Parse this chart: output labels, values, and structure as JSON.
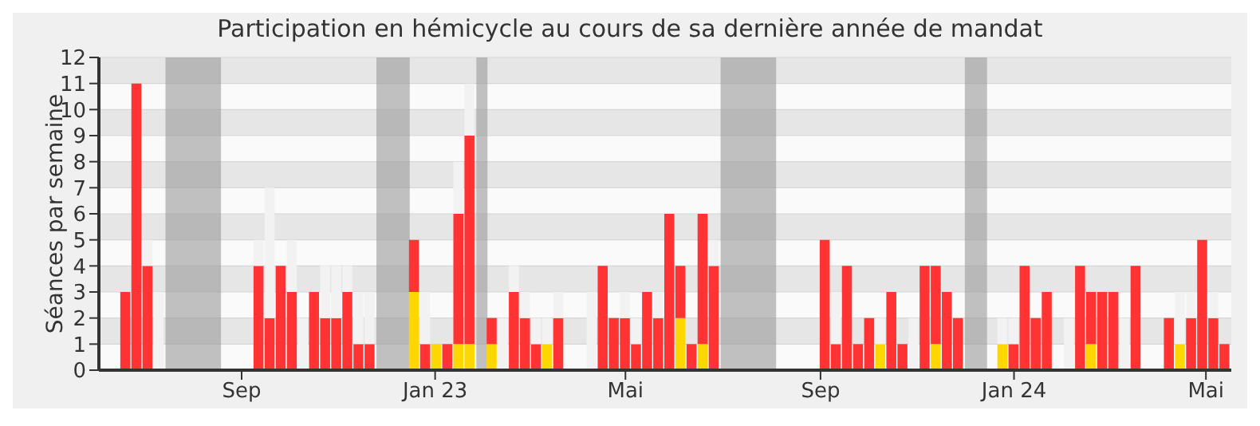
{
  "chart_data": {
    "type": "bar",
    "title": "Participation en hémicycle au cours de sa dernière année de mandat",
    "ylabel": "Séances par semaine",
    "stacked": true,
    "x": [
      "2022-06-20",
      "2022-06-27",
      "2022-07-04",
      "2022-07-11",
      "2022-07-18",
      "2022-07-25",
      "2022-08-01",
      "2022-08-08",
      "2022-08-15",
      "2022-08-22",
      "2022-08-29",
      "2022-09-05",
      "2022-09-12",
      "2022-09-19",
      "2022-09-26",
      "2022-10-03",
      "2022-10-10",
      "2022-10-17",
      "2022-10-24",
      "2022-10-31",
      "2022-11-07",
      "2022-11-14",
      "2022-11-21",
      "2022-11-28",
      "2022-12-05",
      "2022-12-12",
      "2022-12-19",
      "2022-12-26",
      "2023-01-02",
      "2023-01-09",
      "2023-01-16",
      "2023-01-23",
      "2023-01-30",
      "2023-02-06",
      "2023-02-13",
      "2023-02-20",
      "2023-02-27",
      "2023-03-06",
      "2023-03-13",
      "2023-03-20",
      "2023-03-27",
      "2023-04-03",
      "2023-04-10",
      "2023-04-17",
      "2023-04-24",
      "2023-05-01",
      "2023-05-08",
      "2023-05-15",
      "2023-05-22",
      "2023-05-29",
      "2023-06-05",
      "2023-06-12",
      "2023-06-19",
      "2023-06-26",
      "2023-07-03",
      "2023-07-10",
      "2023-07-17",
      "2023-07-24",
      "2023-07-31",
      "2023-08-07",
      "2023-08-14",
      "2023-08-21",
      "2023-08-28",
      "2023-09-04",
      "2023-09-11",
      "2023-09-18",
      "2023-09-25",
      "2023-10-02",
      "2023-10-09",
      "2023-10-16",
      "2023-10-23",
      "2023-10-30",
      "2023-11-06",
      "2023-11-13",
      "2023-11-20",
      "2023-11-27",
      "2023-12-04",
      "2023-12-11",
      "2023-12-18",
      "2023-12-25",
      "2024-01-01",
      "2024-01-08",
      "2024-01-15",
      "2024-01-22",
      "2024-01-29",
      "2024-02-05",
      "2024-02-12",
      "2024-02-19",
      "2024-02-26",
      "2024-03-04",
      "2024-03-11",
      "2024-03-18",
      "2024-03-25",
      "2024-04-01",
      "2024-04-08",
      "2024-04-15",
      "2024-04-22",
      "2024-04-29",
      "2024-05-06",
      "2024-05-13"
    ],
    "series": [
      {
        "color": "#ffd700",
        "values": [
          null,
          null,
          null,
          null,
          null,
          null,
          null,
          null,
          null,
          null,
          null,
          null,
          null,
          null,
          null,
          null,
          null,
          null,
          null,
          null,
          null,
          null,
          null,
          null,
          null,
          null,
          3,
          null,
          1,
          null,
          1,
          1,
          null,
          1,
          null,
          null,
          null,
          null,
          1,
          null,
          null,
          null,
          null,
          null,
          null,
          null,
          null,
          null,
          null,
          null,
          2,
          null,
          1,
          null,
          null,
          null,
          null,
          null,
          null,
          null,
          null,
          null,
          null,
          null,
          null,
          null,
          null,
          null,
          1,
          null,
          null,
          null,
          null,
          1,
          null,
          null,
          null,
          null,
          null,
          1,
          null,
          null,
          null,
          null,
          null,
          null,
          null,
          1,
          null,
          null,
          null,
          null,
          null,
          null,
          null,
          1,
          null,
          null,
          null,
          null
        ]
      },
      {
        "color": "#ff3333",
        "values": [
          3,
          11,
          4,
          null,
          null,
          null,
          null,
          null,
          null,
          null,
          null,
          null,
          4,
          2,
          4,
          3,
          null,
          3,
          2,
          2,
          3,
          1,
          1,
          null,
          null,
          null,
          2,
          1,
          null,
          1,
          5,
          8,
          null,
          1,
          null,
          3,
          2,
          1,
          null,
          2,
          null,
          null,
          null,
          4,
          2,
          2,
          1,
          3,
          2,
          6,
          2,
          1,
          5,
          4,
          null,
          null,
          null,
          null,
          null,
          null,
          null,
          null,
          null,
          5,
          1,
          4,
          1,
          2,
          null,
          3,
          1,
          null,
          4,
          3,
          3,
          2,
          null,
          null,
          null,
          null,
          1,
          4,
          2,
          3,
          null,
          null,
          4,
          2,
          3,
          3,
          null,
          4,
          null,
          null,
          2,
          null,
          2,
          5,
          2,
          1
        ]
      },
      {
        "color": "#f2f2f2",
        "values": [
          null,
          null,
          1,
          3,
          null,
          null,
          null,
          null,
          null,
          null,
          null,
          null,
          1,
          5,
          null,
          2,
          2,
          null,
          2,
          2,
          1,
          2,
          2,
          null,
          null,
          null,
          null,
          2,
          null,
          null,
          2,
          2,
          null,
          null,
          2,
          1,
          1,
          1,
          1,
          1,
          null,
          null,
          3,
          null,
          null,
          1,
          1,
          null,
          1,
          null,
          null,
          null,
          null,
          1,
          null,
          null,
          null,
          null,
          null,
          null,
          null,
          null,
          null,
          null,
          2,
          null,
          null,
          null,
          1,
          null,
          null,
          2,
          null,
          null,
          null,
          null,
          null,
          null,
          null,
          1,
          1,
          null,
          null,
          null,
          null,
          2,
          null,
          null,
          null,
          null,
          2,
          null,
          null,
          null,
          null,
          2,
          1,
          null,
          1,
          null
        ]
      }
    ],
    "xlim": [
      "2022-06-03",
      "2024-05-17"
    ],
    "xticks": [
      {
        "value": "2022-09-01",
        "label": "Sep"
      },
      {
        "value": "2023-01-01",
        "label": "Jan 23"
      },
      {
        "value": "2023-05-01",
        "label": "Mai"
      },
      {
        "value": "2023-09-01",
        "label": "Sep"
      },
      {
        "value": "2024-01-01",
        "label": "Jan 24"
      },
      {
        "value": "2024-05-01",
        "label": "Mai"
      }
    ],
    "ylim": [
      0,
      12
    ],
    "yticks": [
      0,
      1,
      2,
      3,
      4,
      5,
      6,
      7,
      8,
      9,
      10,
      11,
      12
    ],
    "grid": "y",
    "bands": [
      {
        "axis": "x",
        "from": "2022-07-15",
        "to": "2022-08-19",
        "color": "#999999"
      },
      {
        "axis": "x",
        "from": "2022-11-25",
        "to": "2022-12-16",
        "color": "#999999"
      },
      {
        "axis": "x",
        "from": "2023-01-27",
        "to": "2023-02-03",
        "color": "#999999"
      },
      {
        "axis": "x",
        "from": "2023-06-30",
        "to": "2023-08-04",
        "color": "#999999"
      },
      {
        "axis": "x",
        "from": "2023-12-01",
        "to": "2023-12-15",
        "color": "#999999"
      }
    ]
  }
}
